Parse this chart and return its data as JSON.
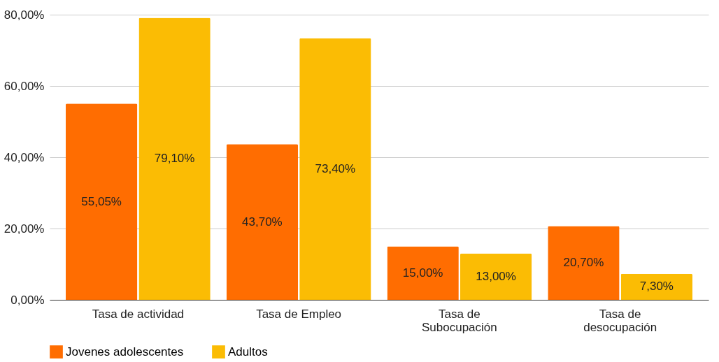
{
  "chart_data": {
    "type": "bar",
    "categories": [
      "Tasa de actividad",
      "Tasa de Empleo",
      "Tasa de Subocupación",
      "Tasa de desocupación"
    ],
    "series": [
      {
        "name": "Jovenes adolescentes",
        "color": "#ff6d01",
        "values": [
          55.05,
          43.7,
          15.0,
          20.7
        ],
        "value_labels": [
          "55,05%",
          "43,70%",
          "15,00%",
          "20,70%"
        ]
      },
      {
        "name": "Adultos",
        "color": "#fbbc04",
        "values": [
          79.1,
          73.4,
          13.0,
          7.3
        ],
        "value_labels": [
          "79,10%",
          "73,40%",
          "13,00%",
          "7,30%"
        ]
      }
    ],
    "ylim": [
      0,
      80
    ],
    "yticks": [
      {
        "value": 0,
        "label": "0,00%"
      },
      {
        "value": 20,
        "label": "20,00%"
      },
      {
        "value": 40,
        "label": "40,00%"
      },
      {
        "value": 60,
        "label": "60,00%"
      },
      {
        "value": 80,
        "label": "80,00%"
      }
    ],
    "grid": "y",
    "legend": "bottom"
  }
}
